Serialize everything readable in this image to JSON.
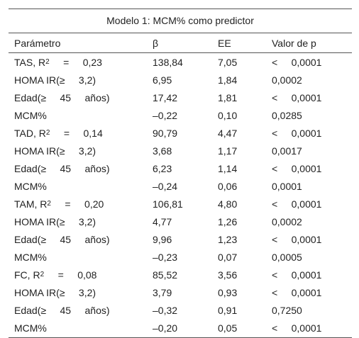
{
  "table": {
    "title": "Modelo 1: MCM% como predictor",
    "header": [
      "Parámetro",
      "β",
      "EE",
      "Valor de p"
    ],
    "rows": [
      [
        {
          "text": "TAS, R",
          "sup": "2",
          "rest": "     =     0,23"
        },
        "138,84",
        "7,05",
        "<     0,0001"
      ],
      [
        "HOMA IR(≥     3,2)",
        "6,95",
        "1,84",
        "0,0002"
      ],
      [
        "Edad(≥     45     años)",
        "17,42",
        "1,81",
        "<     0,0001"
      ],
      [
        "MCM%",
        "–0,22",
        "0,10",
        "0,0285"
      ],
      [
        {
          "text": "TAD, R",
          "sup": "2",
          "rest": "     =     0,14"
        },
        "90,79",
        "4,47",
        "<     0,0001"
      ],
      [
        "HOMA IR(≥     3,2)",
        "3,68",
        "1,17",
        "0,0017"
      ],
      [
        "Edad(≥     45     años)",
        "6,23",
        "1,14",
        "<     0,0001"
      ],
      [
        "MCM%",
        "–0,24",
        "0,06",
        "0,0001"
      ],
      [
        {
          "text": "TAM, R",
          "sup": "2",
          "rest": "     =     0,20"
        },
        "106,81",
        "4,80",
        "<     0,0001"
      ],
      [
        "HOMA IR(≥     3,2)",
        "4,77",
        "1,26",
        "0,0002"
      ],
      [
        "Edad(≥     45     años)",
        "9,96",
        "1,23",
        "<     0,0001"
      ],
      [
        "MCM%",
        "–0,23",
        "0,07",
        "0,0005"
      ],
      [
        {
          "text": "FC, R",
          "sup": "2",
          "rest": "     =     0,08"
        },
        "85,52",
        "3,56",
        "<     0,0001"
      ],
      [
        "HOMA IR(≥     3,2)",
        "3,79",
        "0,93",
        "<     0,0001"
      ],
      [
        "Edad(≥     45     años)",
        "–0,32",
        "0,91",
        "0,7250"
      ],
      [
        "MCM%",
        "–0,20",
        "0,05",
        "<     0,0001"
      ]
    ]
  }
}
